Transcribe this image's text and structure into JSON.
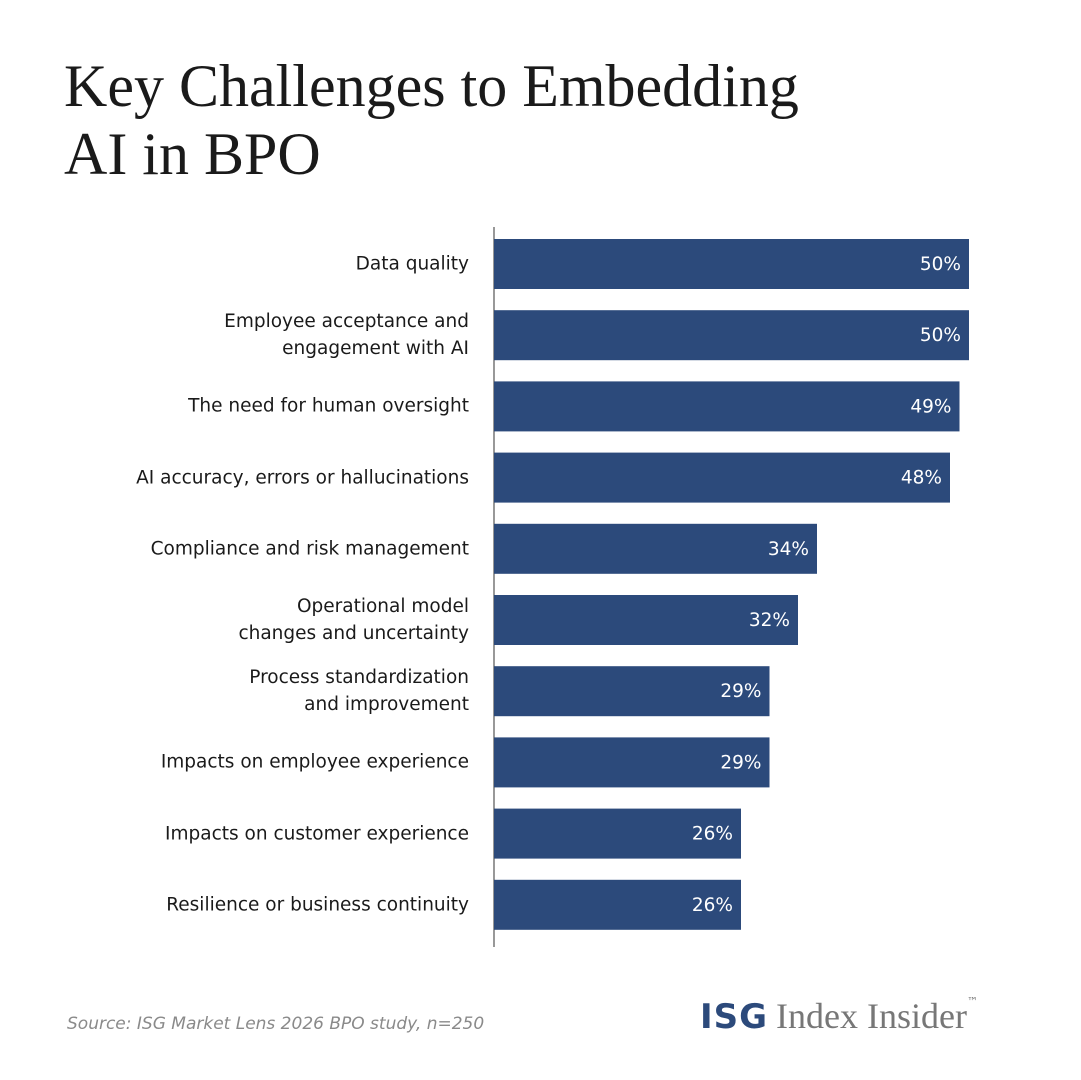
{
  "chart_data": {
    "type": "bar",
    "orientation": "horizontal",
    "title": "Key Challenges to Embedding AI in BPO",
    "categories": [
      "Data quality",
      "Employee acceptance and\nengagement with AI",
      "The need for human oversight",
      "AI accuracy, errors or hallucinations",
      "Compliance and risk management",
      "Operational model\nchanges and uncertainty",
      "Process standardization\nand improvement",
      "Impacts on employee experience",
      "Impacts on customer experience",
      "Resilience or business continuity"
    ],
    "values": [
      50,
      50,
      49,
      48,
      34,
      32,
      29,
      29,
      26,
      26
    ],
    "value_labels": [
      "50%",
      "50%",
      "49%",
      "48%",
      "34%",
      "32%",
      "29%",
      "29%",
      "26%",
      "26%"
    ],
    "color": "#2c4a7b",
    "xlim": [
      0,
      55
    ],
    "source": "Source: ISG Market Lens 2026 BPO study, n=250"
  },
  "logo": {
    "brand": "ISG",
    "product": "Index Insider",
    "mark": "™"
  }
}
